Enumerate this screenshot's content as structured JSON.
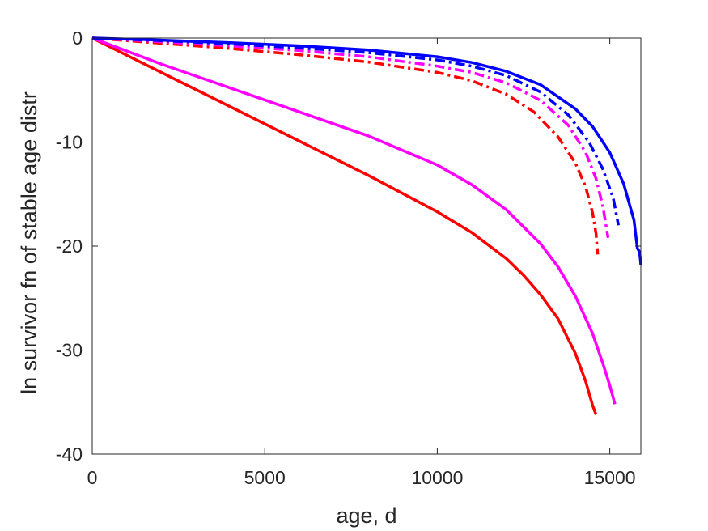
{
  "chart_data": {
    "type": "line",
    "title": "",
    "xlabel": "age, d",
    "ylabel": "ln survivor fn of stable age distr",
    "xlim": [
      0,
      15900
    ],
    "ylim": [
      -40,
      0
    ],
    "xticks": [
      0,
      5000,
      10000,
      15000
    ],
    "yticks": [
      -40,
      -30,
      -20,
      -10,
      0
    ],
    "xtick_labels": [
      "0",
      "5000",
      "10000",
      "15000"
    ],
    "ytick_labels": [
      "-40",
      "-30",
      "-20",
      "-10",
      "0"
    ],
    "grid": false,
    "legend": "none",
    "series": [
      {
        "color": "#ff0000",
        "style": "solid",
        "x": [
          0,
          2000,
          4000,
          6000,
          8000,
          10000,
          11000,
          12000,
          12500,
          13000,
          13500,
          14000,
          14300,
          14500,
          14600
        ],
        "y": [
          0,
          -3.3,
          -6.6,
          -9.9,
          -13.2,
          -16.7,
          -18.7,
          -21.2,
          -22.8,
          -24.7,
          -27.0,
          -30.3,
          -33.0,
          -35.3,
          -36.2
        ]
      },
      {
        "color": "#ff00ff",
        "style": "solid",
        "x": [
          0,
          2000,
          4000,
          6000,
          8000,
          10000,
          11000,
          12000,
          13000,
          13500,
          14000,
          14500,
          14800,
          15000,
          15150
        ],
        "y": [
          0,
          -2.5,
          -4.8,
          -7.1,
          -9.4,
          -12.2,
          -14.1,
          -16.5,
          -19.8,
          -22.0,
          -24.8,
          -28.4,
          -31.3,
          -33.4,
          -35.2
        ]
      },
      {
        "color": "#0000ff",
        "style": "solid",
        "x": [
          0,
          2000,
          4000,
          6000,
          8000,
          10000,
          11000,
          12000,
          13000,
          14000,
          14500,
          15000,
          15400,
          15700,
          15800,
          15850,
          15880,
          15900
        ],
        "y": [
          0,
          -0.2,
          -0.45,
          -0.75,
          -1.15,
          -1.8,
          -2.35,
          -3.2,
          -4.5,
          -6.8,
          -8.5,
          -11.0,
          -14.0,
          -17.5,
          -20.2,
          -20.5,
          -21.0,
          -21.8
        ]
      },
      {
        "color": "#ff0000",
        "style": "dashdot",
        "x": [
          0,
          2000,
          4000,
          6000,
          8000,
          10000,
          11000,
          12000,
          12800,
          13500,
          14000,
          14300,
          14500,
          14600,
          14650
        ],
        "y": [
          0,
          -0.5,
          -1.0,
          -1.6,
          -2.3,
          -3.3,
          -4.1,
          -5.4,
          -7.1,
          -9.5,
          -12.0,
          -14.3,
          -16.8,
          -18.8,
          -20.8
        ]
      },
      {
        "color": "#ff00ff",
        "style": "dashdot",
        "x": [
          0,
          2000,
          4000,
          6000,
          8000,
          10000,
          11000,
          12000,
          13000,
          13800,
          14300,
          14600,
          14800,
          14950
        ],
        "y": [
          0,
          -0.35,
          -0.75,
          -1.2,
          -1.8,
          -2.7,
          -3.3,
          -4.3,
          -6.0,
          -8.4,
          -11.0,
          -13.5,
          -16.2,
          -19.2
        ]
      },
      {
        "color": "#0000ff",
        "style": "dashdot",
        "x": [
          0,
          2000,
          4000,
          6000,
          8000,
          10000,
          11000,
          12000,
          13000,
          13800,
          14400,
          14800,
          15100,
          15250
        ],
        "y": [
          0,
          -0.25,
          -0.55,
          -0.95,
          -1.4,
          -2.1,
          -2.7,
          -3.6,
          -5.2,
          -7.4,
          -10.0,
          -12.6,
          -15.4,
          -18.0
        ]
      }
    ]
  }
}
